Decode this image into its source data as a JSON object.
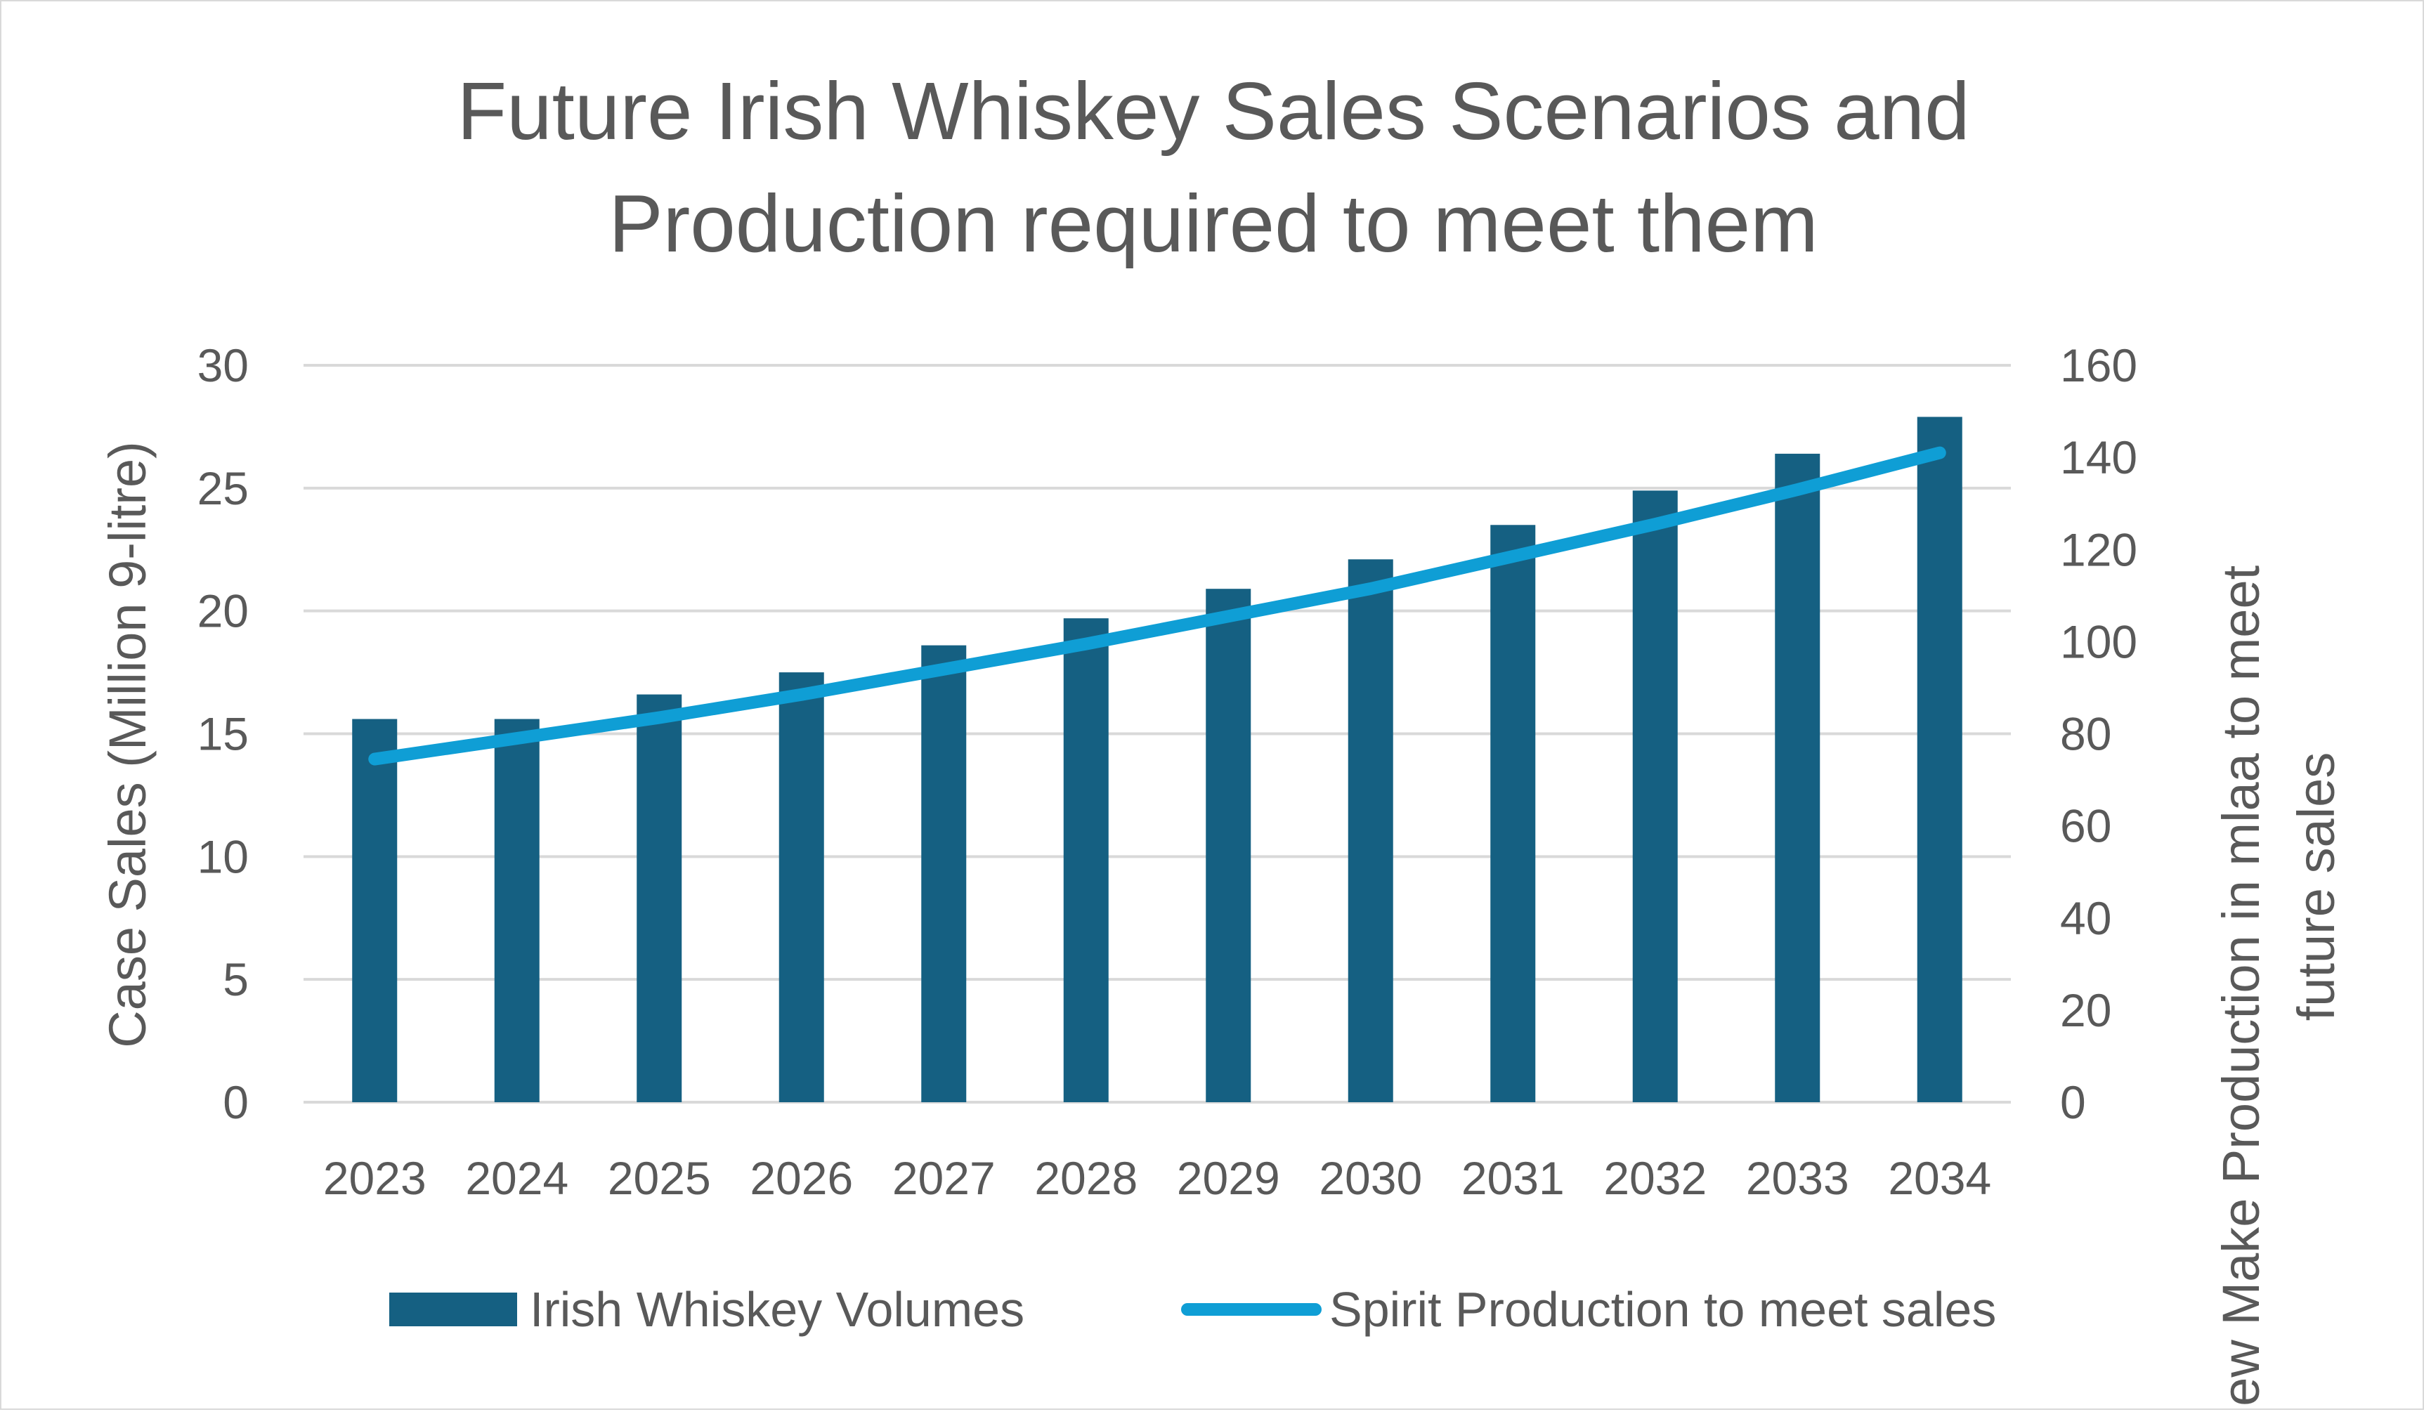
{
  "chart_data": {
    "type": "bar",
    "title_lines": [
      "Future Irish Whiskey Sales Scenarios and",
      "Production required to meet them"
    ],
    "categories": [
      "2023",
      "2024",
      "2025",
      "2026",
      "2027",
      "2028",
      "2029",
      "2030",
      "2031",
      "2032",
      "2033",
      "2034"
    ],
    "series": [
      {
        "name": "Irish Whiskey Volumes",
        "type": "bar",
        "axis": "left",
        "color": "#156082",
        "values": [
          15.6,
          15.6,
          16.6,
          17.5,
          18.6,
          19.7,
          20.9,
          22.1,
          23.5,
          24.9,
          26.4,
          27.9
        ]
      },
      {
        "name": "Spirit Production to meet sales",
        "type": "line",
        "axis": "right",
        "color": "#0F9ED5",
        "values": [
          74.5,
          79,
          83.5,
          88.5,
          94,
          99.5,
          105.5,
          111.5,
          118.5,
          125.5,
          133,
          141
        ]
      }
    ],
    "y_left": {
      "label": "Case Sales (Million 9-litre)",
      "min": 0,
      "max": 30,
      "ticks": [
        "0",
        "5",
        "10",
        "15",
        "20",
        "25",
        "30"
      ]
    },
    "y_right": {
      "label_lines": [
        "New Make Production in mlaa to meet",
        "future sales"
      ],
      "min": 0,
      "max": 160,
      "ticks": [
        "0",
        "20",
        "40",
        "60",
        "80",
        "100",
        "120",
        "140",
        "160"
      ]
    },
    "grid": true,
    "legend_position": "bottom"
  }
}
